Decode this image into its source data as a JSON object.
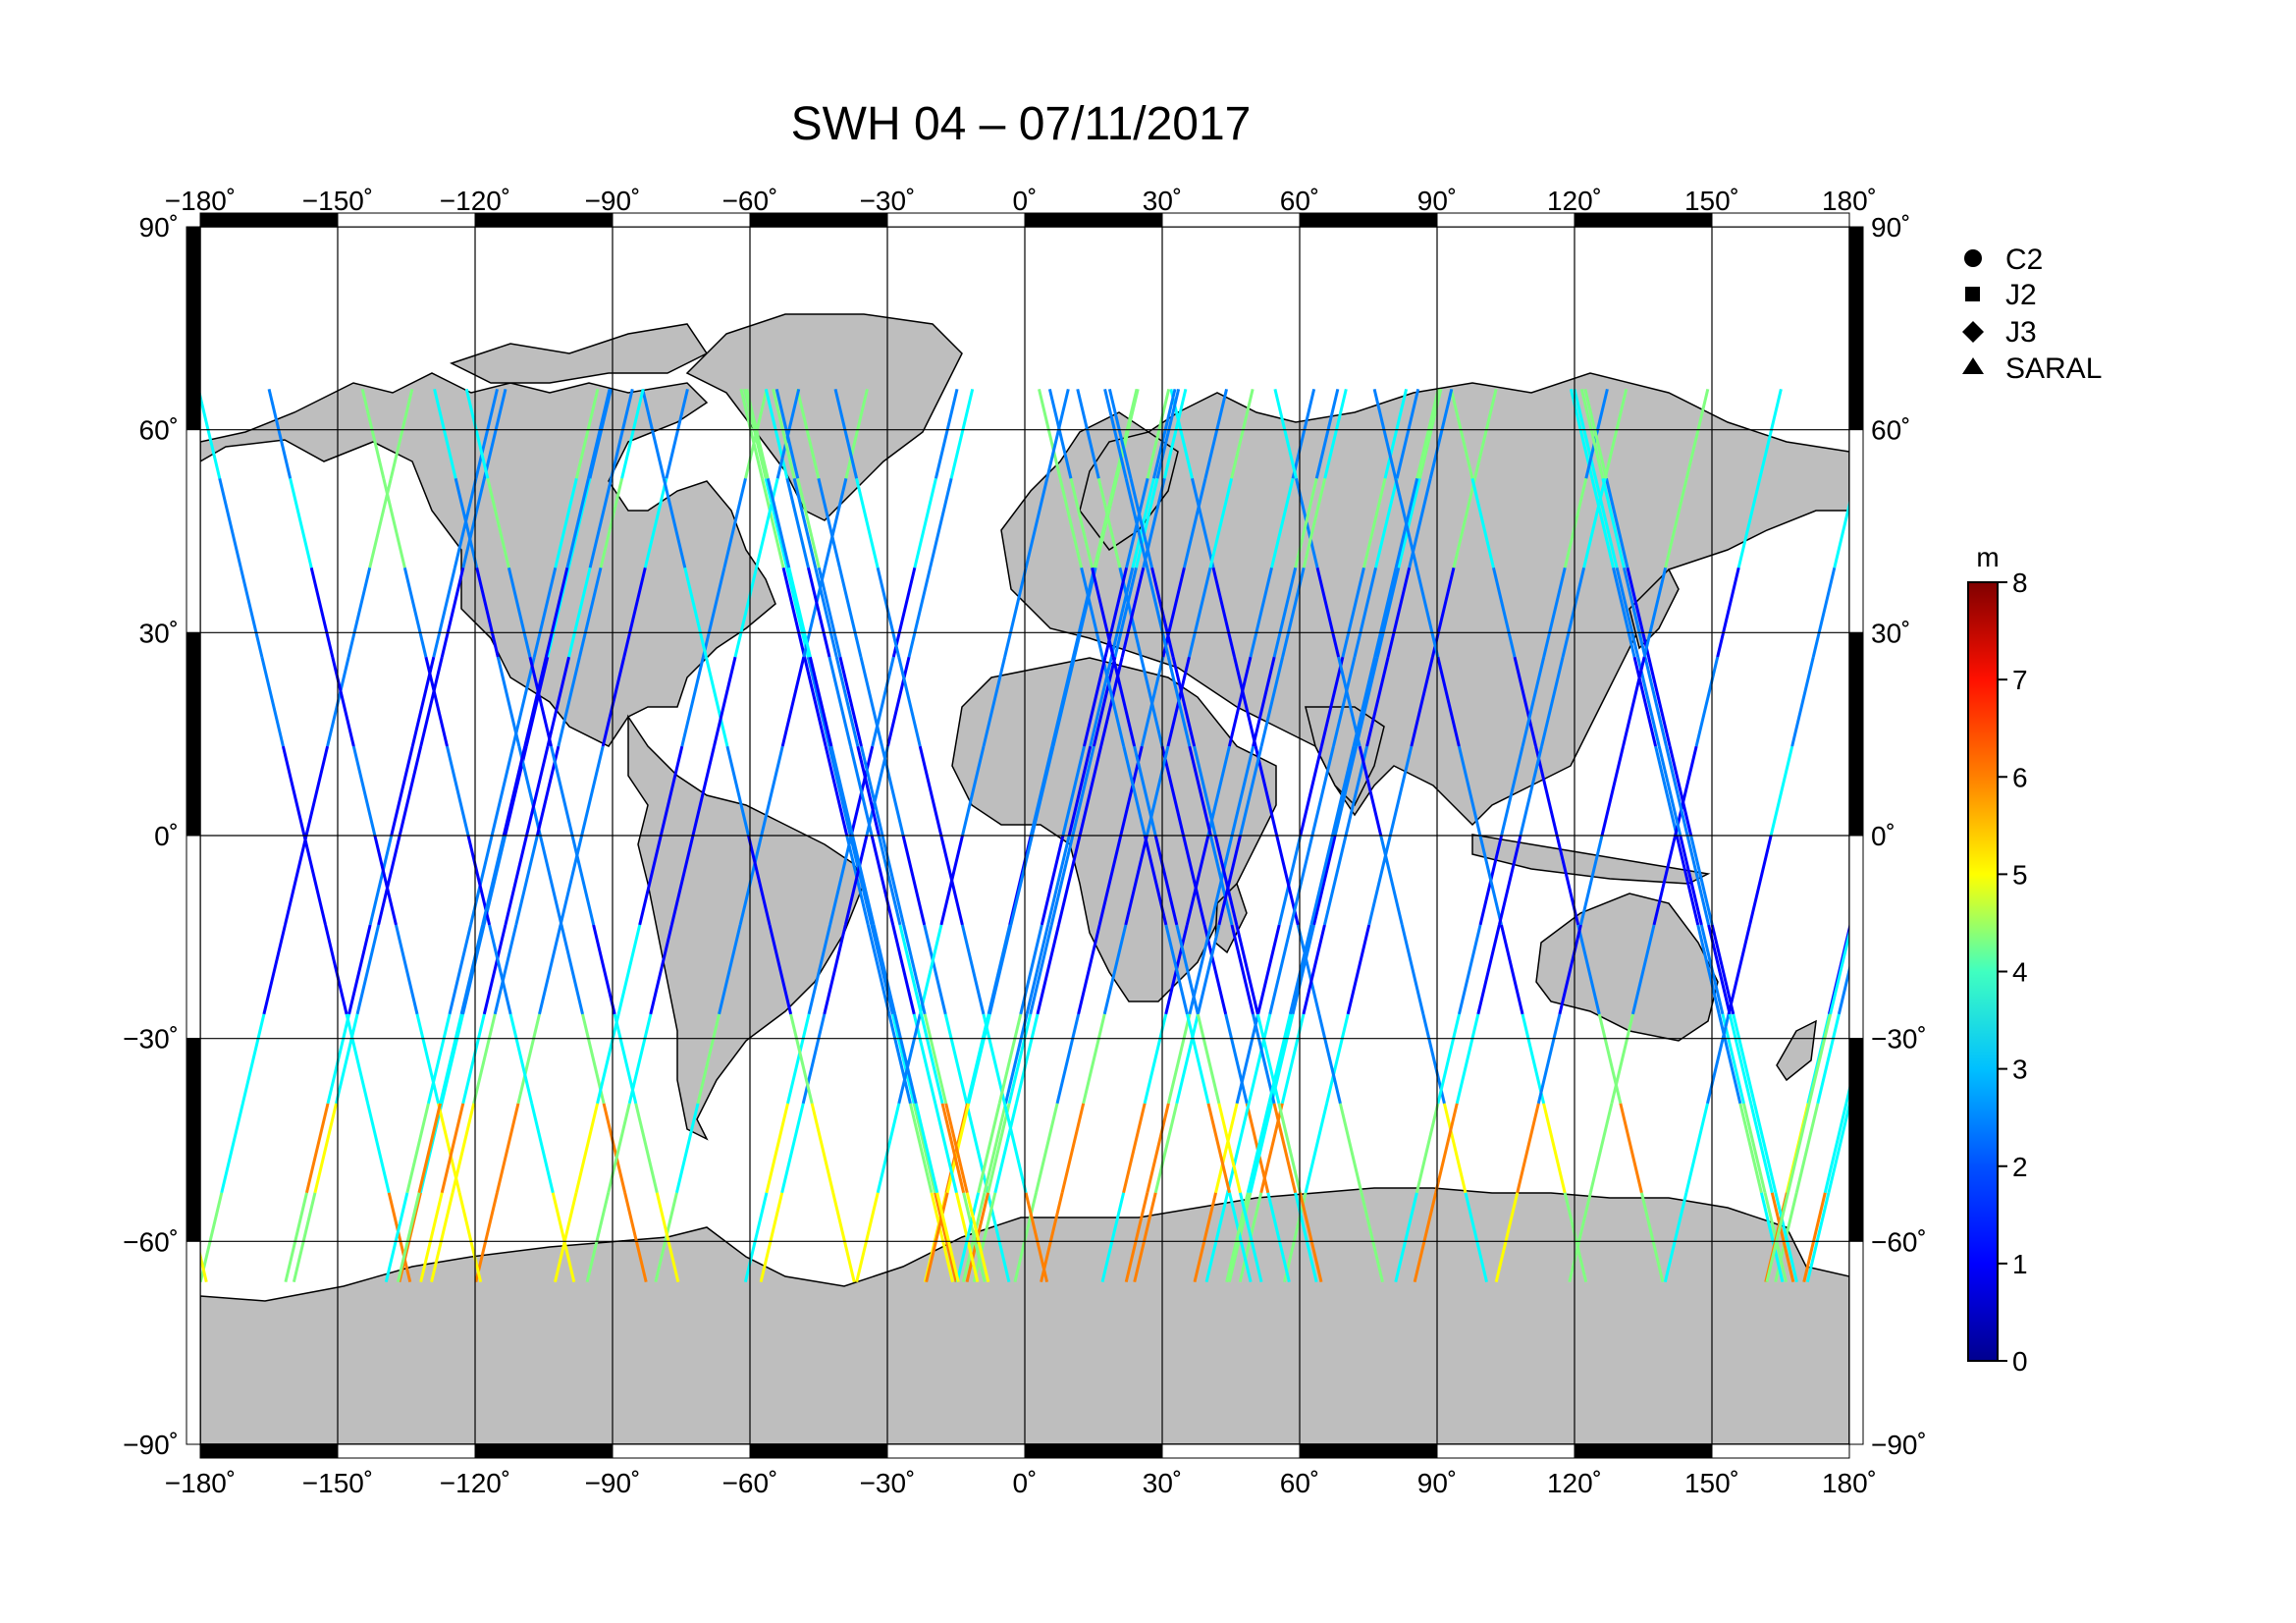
{
  "title": "SWH 04 – 07/11/2017",
  "map": {
    "lon_ticks": [
      "−180˚",
      "−150˚",
      "−120˚",
      "−90˚",
      "−60˚",
      "−30˚",
      "0˚",
      "30˚",
      "60˚",
      "90˚",
      "120˚",
      "150˚",
      "180˚"
    ],
    "lat_ticks": [
      "90˚",
      "60˚",
      "30˚",
      "0˚",
      "−30˚",
      "−60˚",
      "−90˚"
    ],
    "lon_range": [
      -180,
      180
    ],
    "lat_range": [
      -90,
      90
    ],
    "grid_step_deg": 30,
    "land_color": "#bebebe",
    "ocean_color": "#ffffff"
  },
  "legend": {
    "items": [
      {
        "label": "C2",
        "marker": "circle"
      },
      {
        "label": "J2",
        "marker": "square"
      },
      {
        "label": "J3",
        "marker": "diamond"
      },
      {
        "label": "SARAL",
        "marker": "triangle"
      }
    ]
  },
  "colorbar": {
    "unit": "m",
    "min": 0,
    "max": 8,
    "ticks": [
      "0",
      "1",
      "2",
      "3",
      "4",
      "5",
      "6",
      "7",
      "8"
    ],
    "colormap": [
      "#00008f",
      "#0000ff",
      "#0080ff",
      "#00ffff",
      "#80ff80",
      "#ffff00",
      "#ff8000",
      "#ff0000",
      "#800000"
    ]
  },
  "chart_data": {
    "type": "scatter",
    "title": "SWH 04 – 07/11/2017",
    "xlabel": "",
    "ylabel": "",
    "xlim": [
      -180,
      180
    ],
    "ylim": [
      -90,
      90
    ],
    "color_variable_unit": "m",
    "color_range": [
      0,
      8
    ],
    "series": [
      {
        "name": "C2"
      },
      {
        "name": "J2"
      },
      {
        "name": "J3"
      },
      {
        "name": "SARAL"
      }
    ]
  }
}
